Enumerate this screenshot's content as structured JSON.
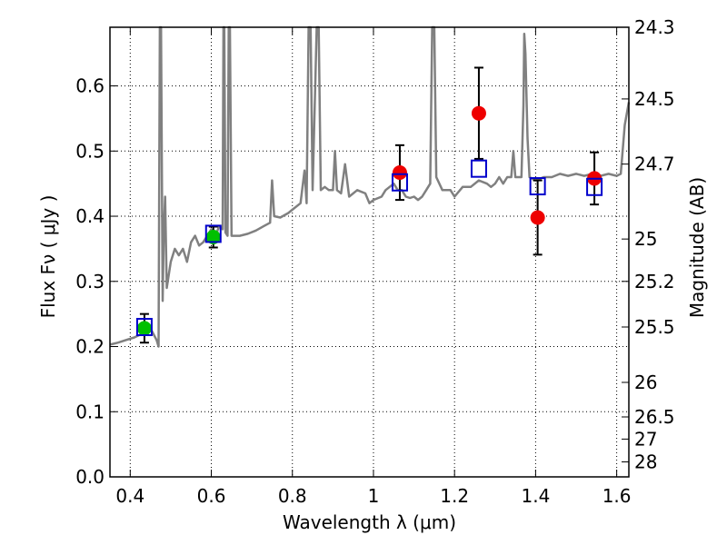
{
  "chart_data": {
    "type": "scatter",
    "xlabel": "Wavelength  λ (μm)",
    "ylabel": "Flux  Fν  ( μJy )",
    "y2label": "Magnitude (AB)",
    "xlim": [
      0.35,
      1.63
    ],
    "ylim": [
      0.0,
      0.69
    ],
    "grid": true,
    "legend": "none",
    "x_ticks": [
      {
        "value": 0.4,
        "label": "0.4"
      },
      {
        "value": 0.6,
        "label": "0.6"
      },
      {
        "value": 0.8,
        "label": "0.8"
      },
      {
        "value": 1.0,
        "label": "1"
      },
      {
        "value": 1.2,
        "label": "1.2"
      },
      {
        "value": 1.4,
        "label": "1.4"
      },
      {
        "value": 1.6,
        "label": "1.6"
      }
    ],
    "y_ticks": [
      {
        "value": 0.0,
        "label": "0.0"
      },
      {
        "value": 0.1,
        "label": "0.1"
      },
      {
        "value": 0.2,
        "label": "0.2"
      },
      {
        "value": 0.3,
        "label": "0.3"
      },
      {
        "value": 0.4,
        "label": "0.4"
      },
      {
        "value": 0.5,
        "label": "0.5"
      },
      {
        "value": 0.6,
        "label": "0.6"
      }
    ],
    "mag_ticks": [
      {
        "label": "24.3",
        "flux": 0.69
      },
      {
        "label": "24.5",
        "flux": 0.58
      },
      {
        "label": "24.7",
        "flux": 0.48
      },
      {
        "label": "25",
        "flux": 0.365
      },
      {
        "label": "25.2",
        "flux": 0.3
      },
      {
        "label": "25.5",
        "flux": 0.23
      },
      {
        "label": "26",
        "flux": 0.145
      },
      {
        "label": "26.5",
        "flux": 0.092
      },
      {
        "label": "27",
        "flux": 0.058
      },
      {
        "label": "28",
        "flux": 0.023
      }
    ],
    "sed_model": {
      "color": "#808080",
      "points": [
        [
          0.35,
          0.203
        ],
        [
          0.37,
          0.206
        ],
        [
          0.39,
          0.21
        ],
        [
          0.41,
          0.214
        ],
        [
          0.43,
          0.22
        ],
        [
          0.45,
          0.228
        ],
        [
          0.465,
          0.21
        ],
        [
          0.47,
          0.2
        ],
        [
          0.473,
          0.69
        ],
        [
          0.476,
          0.69
        ],
        [
          0.48,
          0.27
        ],
        [
          0.483,
          0.38
        ],
        [
          0.486,
          0.43
        ],
        [
          0.49,
          0.29
        ],
        [
          0.5,
          0.33
        ],
        [
          0.51,
          0.35
        ],
        [
          0.52,
          0.34
        ],
        [
          0.53,
          0.35
        ],
        [
          0.54,
          0.33
        ],
        [
          0.55,
          0.36
        ],
        [
          0.56,
          0.37
        ],
        [
          0.57,
          0.355
        ],
        [
          0.58,
          0.36
        ],
        [
          0.59,
          0.37
        ],
        [
          0.6,
          0.38
        ],
        [
          0.61,
          0.37
        ],
        [
          0.62,
          0.385
        ],
        [
          0.628,
          0.38
        ],
        [
          0.63,
          0.69
        ],
        [
          0.632,
          0.69
        ],
        [
          0.635,
          0.375
        ],
        [
          0.64,
          0.37
        ],
        [
          0.643,
          0.69
        ],
        [
          0.646,
          0.69
        ],
        [
          0.65,
          0.37
        ],
        [
          0.67,
          0.37
        ],
        [
          0.69,
          0.373
        ],
        [
          0.71,
          0.378
        ],
        [
          0.73,
          0.385
        ],
        [
          0.745,
          0.39
        ],
        [
          0.75,
          0.455
        ],
        [
          0.755,
          0.4
        ],
        [
          0.77,
          0.398
        ],
        [
          0.79,
          0.405
        ],
        [
          0.8,
          0.41
        ],
        [
          0.81,
          0.415
        ],
        [
          0.82,
          0.42
        ],
        [
          0.83,
          0.47
        ],
        [
          0.835,
          0.42
        ],
        [
          0.84,
          0.69
        ],
        [
          0.845,
          0.69
        ],
        [
          0.85,
          0.44
        ],
        [
          0.86,
          0.69
        ],
        [
          0.865,
          0.69
        ],
        [
          0.87,
          0.44
        ],
        [
          0.88,
          0.445
        ],
        [
          0.89,
          0.44
        ],
        [
          0.9,
          0.44
        ],
        [
          0.905,
          0.5
        ],
        [
          0.91,
          0.44
        ],
        [
          0.92,
          0.435
        ],
        [
          0.93,
          0.48
        ],
        [
          0.94,
          0.43
        ],
        [
          0.96,
          0.44
        ],
        [
          0.98,
          0.435
        ],
        [
          0.99,
          0.42
        ],
        [
          1.0,
          0.425
        ],
        [
          1.02,
          0.43
        ],
        [
          1.03,
          0.44
        ],
        [
          1.05,
          0.45
        ],
        [
          1.06,
          0.44
        ],
        [
          1.07,
          0.44
        ],
        [
          1.08,
          0.43
        ],
        [
          1.09,
          0.428
        ],
        [
          1.1,
          0.43
        ],
        [
          1.11,
          0.425
        ],
        [
          1.12,
          0.43
        ],
        [
          1.13,
          0.44
        ],
        [
          1.14,
          0.45
        ],
        [
          1.145,
          0.69
        ],
        [
          1.15,
          0.69
        ],
        [
          1.155,
          0.46
        ],
        [
          1.17,
          0.44
        ],
        [
          1.19,
          0.44
        ],
        [
          1.2,
          0.43
        ],
        [
          1.22,
          0.445
        ],
        [
          1.24,
          0.445
        ],
        [
          1.26,
          0.455
        ],
        [
          1.28,
          0.45
        ],
        [
          1.29,
          0.445
        ],
        [
          1.3,
          0.45
        ],
        [
          1.31,
          0.46
        ],
        [
          1.32,
          0.45
        ],
        [
          1.33,
          0.46
        ],
        [
          1.34,
          0.46
        ],
        [
          1.345,
          0.5
        ],
        [
          1.35,
          0.46
        ],
        [
          1.365,
          0.46
        ],
        [
          1.37,
          0.57
        ],
        [
          1.372,
          0.68
        ],
        [
          1.375,
          0.65
        ],
        [
          1.38,
          0.52
        ],
        [
          1.385,
          0.46
        ],
        [
          1.4,
          0.455
        ],
        [
          1.42,
          0.46
        ],
        [
          1.44,
          0.46
        ],
        [
          1.46,
          0.465
        ],
        [
          1.48,
          0.462
        ],
        [
          1.5,
          0.465
        ],
        [
          1.52,
          0.462
        ],
        [
          1.54,
          0.465
        ],
        [
          1.56,
          0.462
        ],
        [
          1.58,
          0.465
        ],
        [
          1.6,
          0.462
        ],
        [
          1.61,
          0.465
        ],
        [
          1.62,
          0.54
        ],
        [
          1.63,
          0.575
        ]
      ]
    },
    "series": [
      {
        "marker": "circle",
        "color": "#00c000",
        "points": [
          {
            "x": 0.435,
            "y": 0.228,
            "yerr": 0.022
          },
          {
            "x": 0.605,
            "y": 0.368,
            "yerr": 0.016
          }
        ]
      },
      {
        "marker": "circle",
        "color": "#ee0000",
        "points": [
          {
            "x": 1.065,
            "y": 0.467,
            "yerr": 0.042
          },
          {
            "x": 1.26,
            "y": 0.558,
            "yerr": 0.07
          },
          {
            "x": 1.405,
            "y": 0.398,
            "yerr": 0.057
          },
          {
            "x": 1.545,
            "y": 0.458,
            "yerr": 0.04
          }
        ]
      },
      {
        "marker": "open-square",
        "color": "#0000cc",
        "points": [
          {
            "x": 0.435,
            "y": 0.23
          },
          {
            "x": 0.605,
            "y": 0.373
          },
          {
            "x": 1.065,
            "y": 0.452
          },
          {
            "x": 1.26,
            "y": 0.473
          },
          {
            "x": 1.405,
            "y": 0.446
          },
          {
            "x": 1.545,
            "y": 0.445
          }
        ]
      }
    ]
  }
}
